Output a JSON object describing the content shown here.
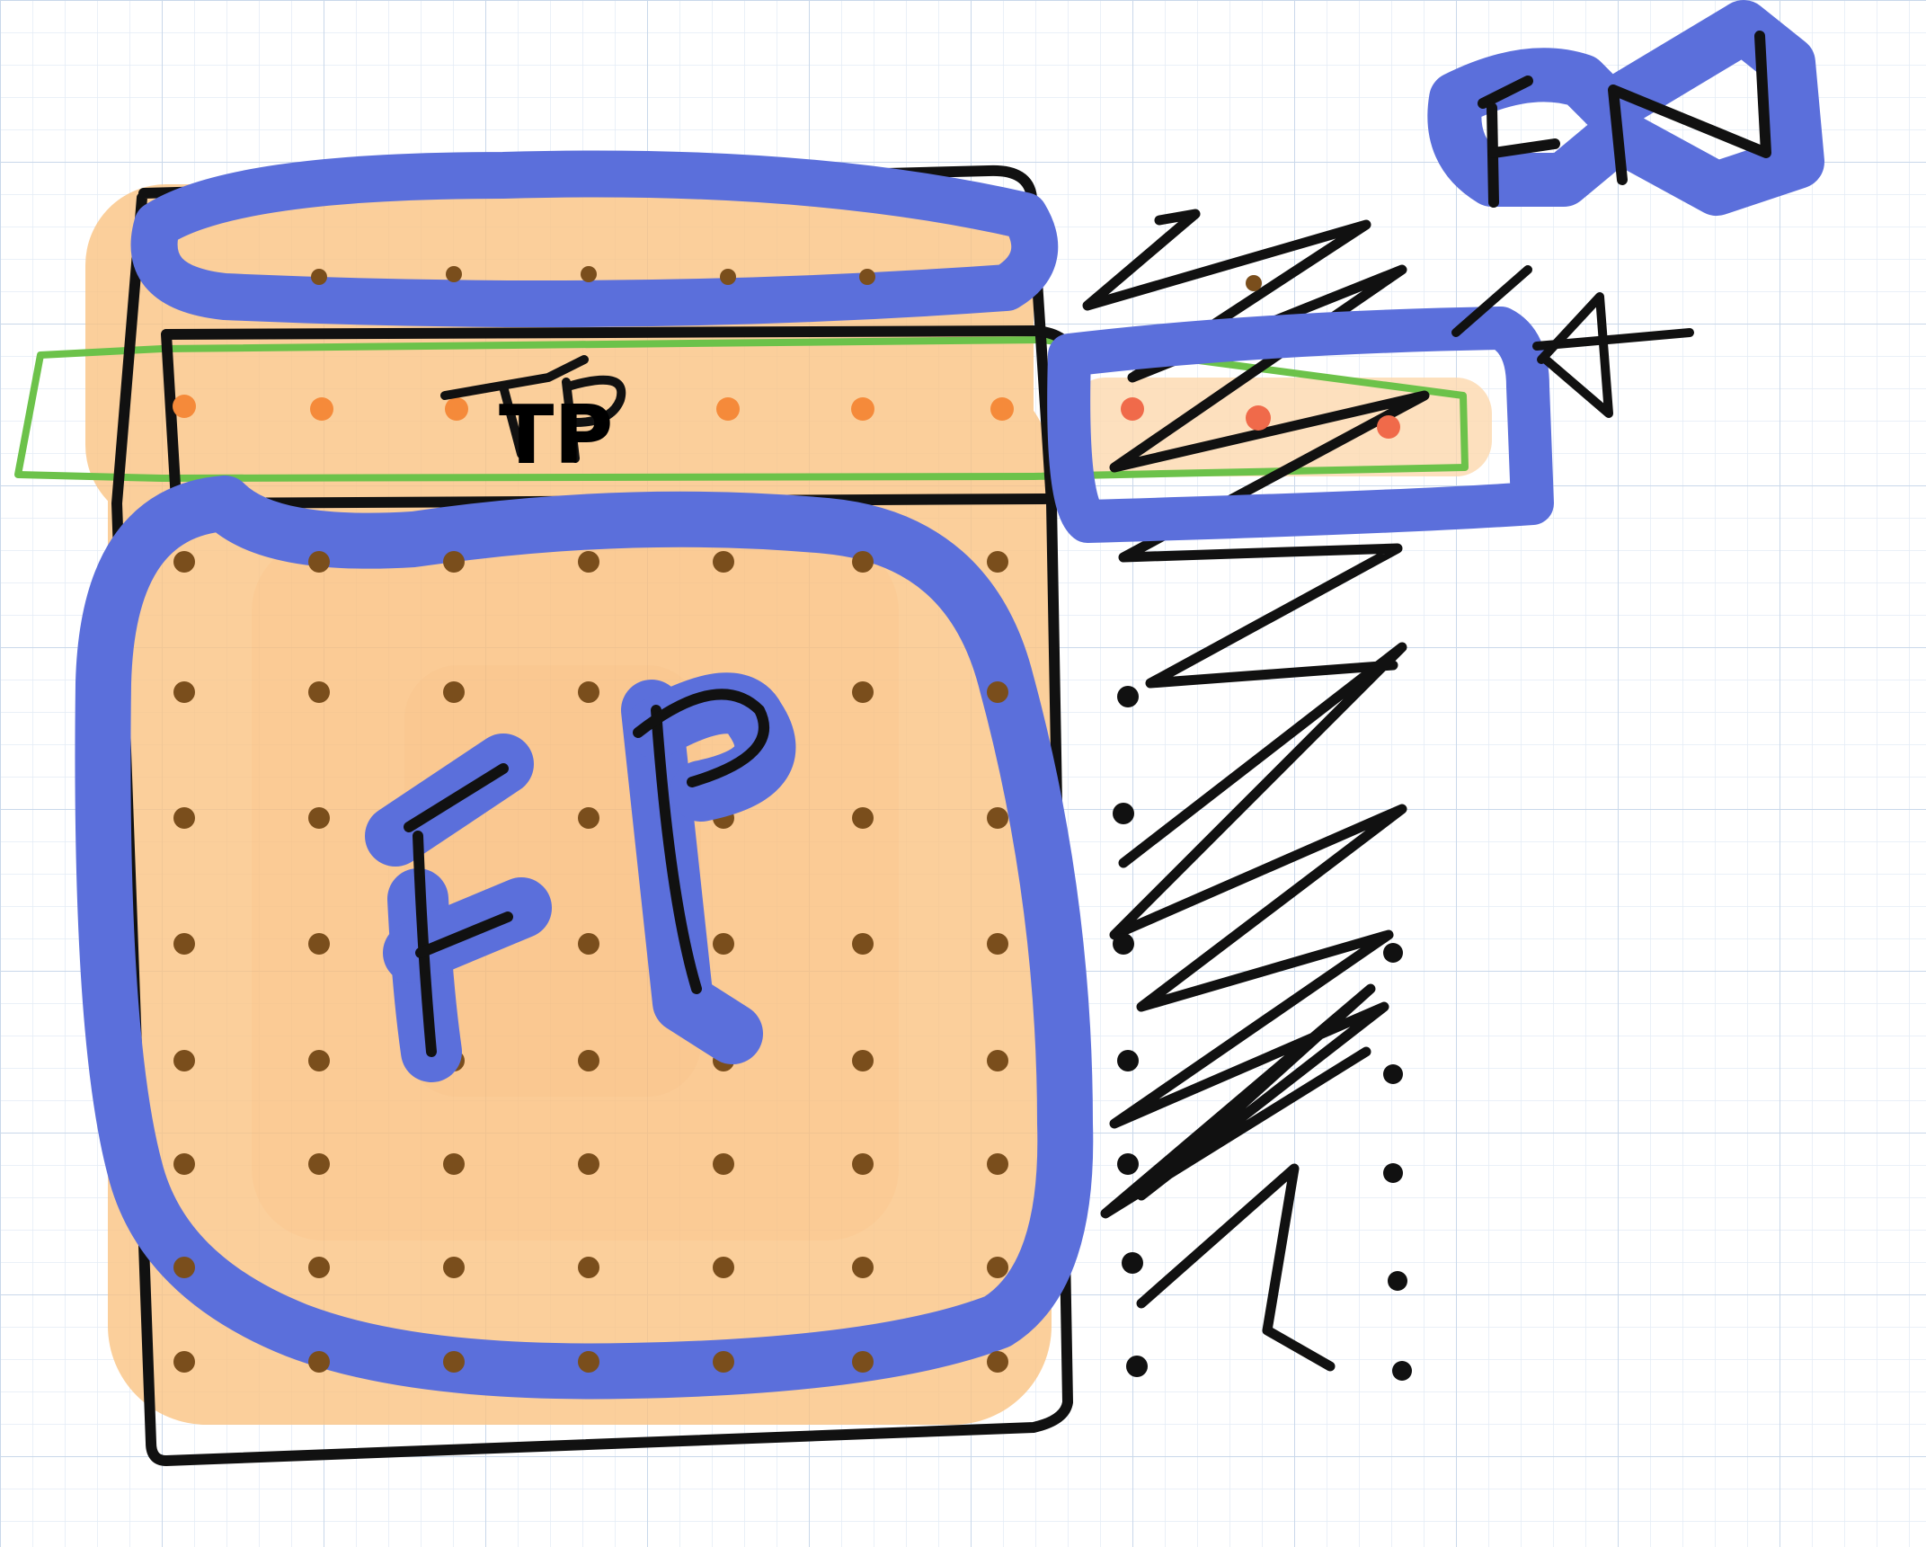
{
  "labels": {
    "fp": "FP",
    "tp": "TP",
    "fn": "FN"
  },
  "colors": {
    "paper": "#ffffff",
    "grid_minor": "#e3ecf5",
    "grid_major": "#c9d8ea",
    "orange_fill": "#fbc483",
    "orange_strong": "#f6a85a",
    "blue_ink": "#5b6fdb",
    "black_ink": "#111111",
    "green_ink": "#6cc24a",
    "brown_dot": "#7a4e1c",
    "red_dot": "#f06a4a",
    "tp_dot": "#f58a3a"
  }
}
